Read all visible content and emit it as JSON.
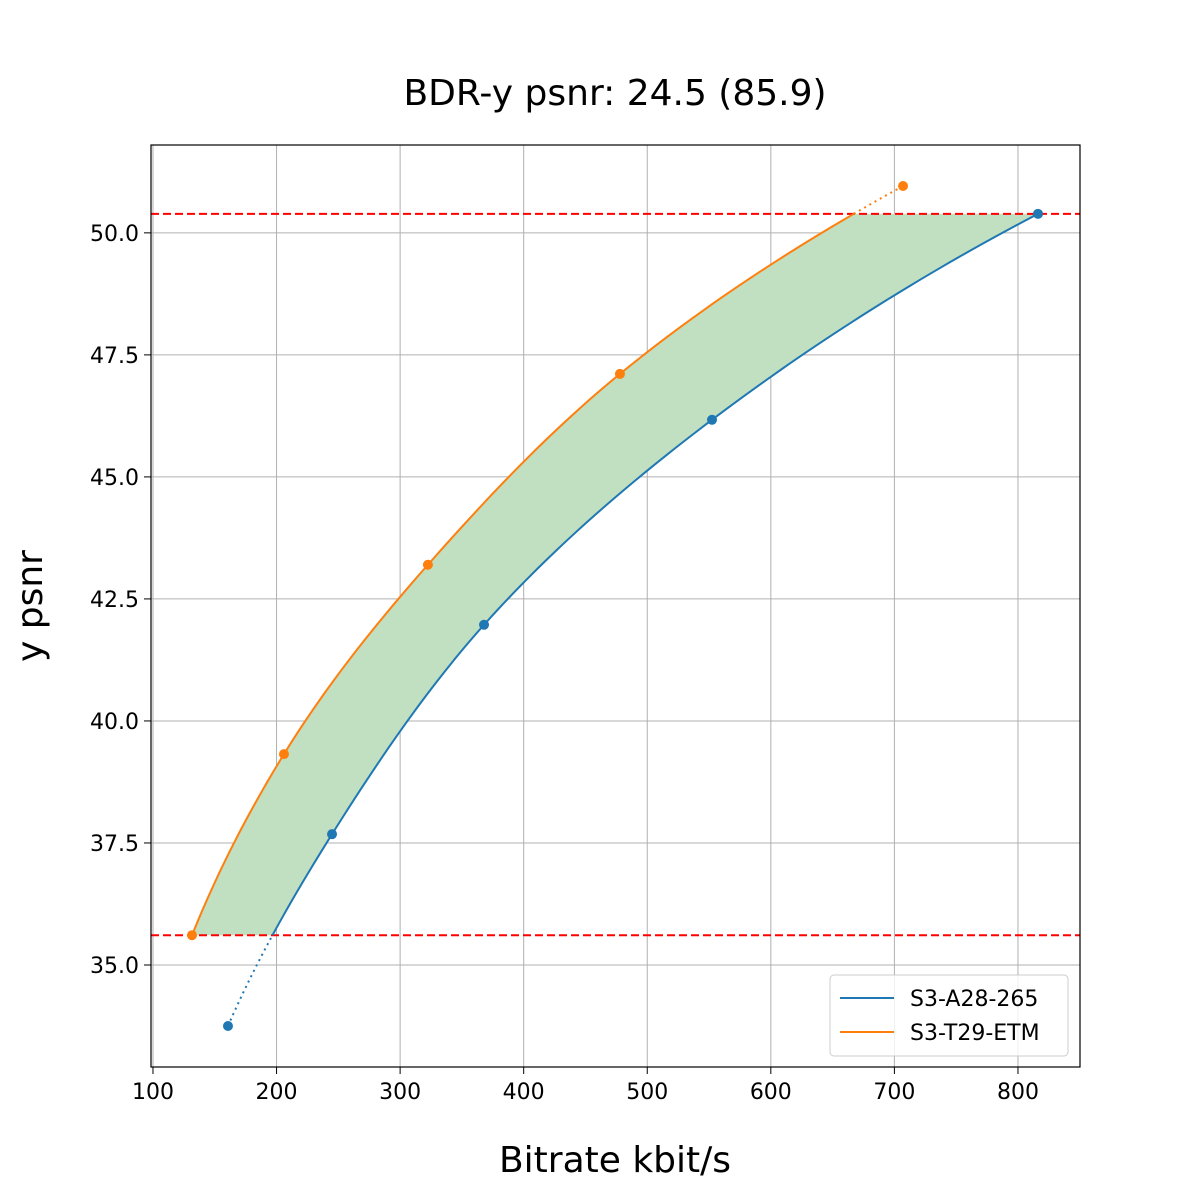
{
  "chart_data": {
    "type": "line",
    "title": "BDR-y psnr: 24.5 (85.9)",
    "xlabel": "Bitrate kbit/s",
    "ylabel": "y psnr",
    "xlim": [
      98.4,
      850.2
    ],
    "ylim": [
      32.91,
      51.8
    ],
    "xticks": [
      100,
      200,
      300,
      400,
      500,
      600,
      700,
      800
    ],
    "xtick_labels": [
      "100",
      "200",
      "300",
      "400",
      "500",
      "600",
      "700",
      "800"
    ],
    "yticks": [
      35.0,
      37.5,
      40.0,
      42.5,
      45.0,
      47.5,
      50.0
    ],
    "ytick_labels": [
      "35.0",
      "37.5",
      "40.0",
      "42.5",
      "45.0",
      "47.5",
      "50.0"
    ],
    "grid": true,
    "legend_position": "lower-right",
    "overlap_range_y": [
      35.61,
      50.39
    ],
    "overlap_fill_color": "#c1e0c1",
    "reference_line_color": "#ff0000",
    "series": [
      {
        "name": "S3-A28-265",
        "color": "#1f77b4",
        "x": [
          160.7,
          244.9,
          367.9,
          552.4,
          816.2
        ],
        "y": [
          33.75,
          37.68,
          41.97,
          46.17,
          50.39
        ]
      },
      {
        "name": "S3-T29-ETM",
        "color": "#ff7f0e",
        "x": [
          131.6,
          206.0,
          322.5,
          477.9,
          707.0
        ],
        "y": [
          35.61,
          39.32,
          43.2,
          47.11,
          50.96
        ]
      }
    ]
  }
}
